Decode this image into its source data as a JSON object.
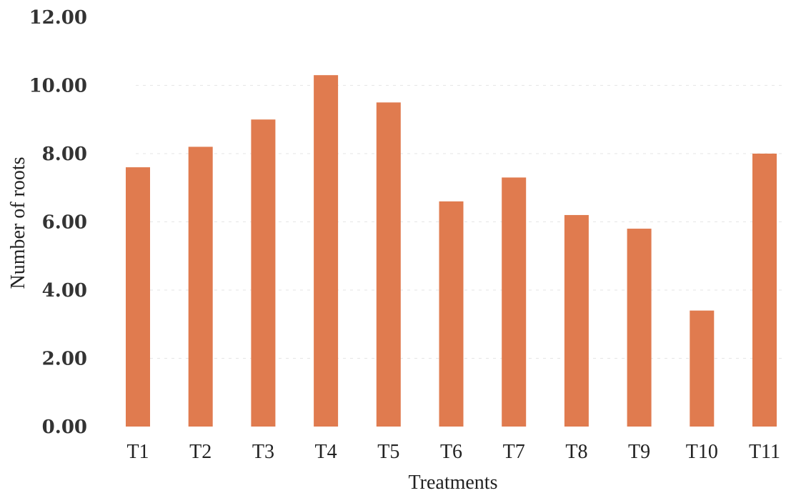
{
  "chart_data": {
    "type": "bar",
    "title": "",
    "xlabel": "Treatments",
    "ylabel": "Number of roots",
    "categories": [
      "T1",
      "T2",
      "T3",
      "T4",
      "T5",
      "T6",
      "T7",
      "T8",
      "T9",
      "T10",
      "T11"
    ],
    "values": [
      7.6,
      8.2,
      9.0,
      10.3,
      9.5,
      6.6,
      7.3,
      6.2,
      5.8,
      3.4,
      8.0
    ],
    "ylim": [
      0,
      12
    ],
    "yticks": [
      "0.00",
      "2.00",
      "4.00",
      "6.00",
      "8.00",
      "10.00",
      "12.00"
    ],
    "ytick_values": [
      0,
      2,
      4,
      6,
      8,
      10,
      12
    ],
    "grid": true,
    "legend": "none",
    "bar_color": "#E07B4F"
  }
}
